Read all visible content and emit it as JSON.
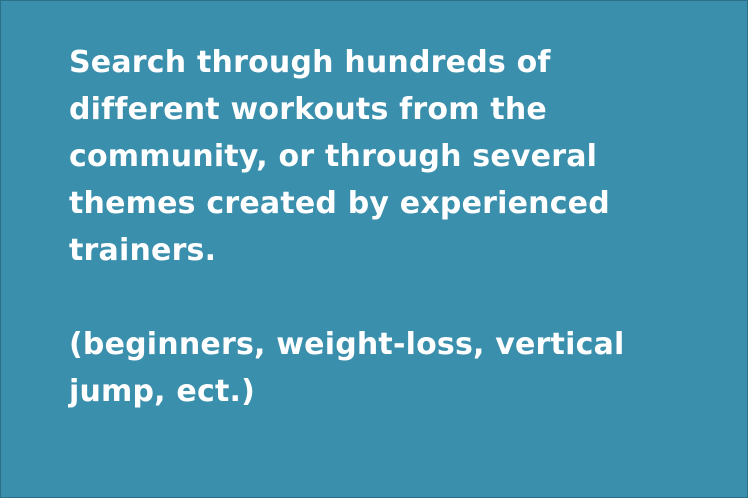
{
  "slide": {
    "background_color": "#3a8fad",
    "text_color": "#ffffff",
    "paragraph_1_lines": [
      "Search through hundreds of",
      "different workouts from the",
      "community, or through several",
      "themes created by experienced",
      "trainers."
    ],
    "paragraph_2_lines": [
      "(beginners, weight-loss, vertical",
      "jump, ect.)"
    ]
  }
}
